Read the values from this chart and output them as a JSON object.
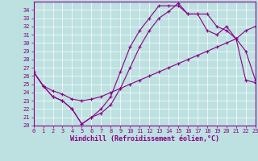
{
  "xlabel": "Windchill (Refroidissement éolien,°C)",
  "xlim": [
    0,
    23
  ],
  "ylim": [
    20,
    35
  ],
  "yticks": [
    20,
    21,
    22,
    23,
    24,
    25,
    26,
    27,
    28,
    29,
    30,
    31,
    32,
    33,
    34
  ],
  "xticks": [
    0,
    1,
    2,
    3,
    4,
    5,
    6,
    7,
    8,
    9,
    10,
    11,
    12,
    13,
    14,
    15,
    16,
    17,
    18,
    19,
    20,
    21,
    22,
    23
  ],
  "line_color": "#880088",
  "bg_color": "#bde0e0",
  "line1_x": [
    0,
    1,
    2,
    3,
    4,
    5,
    6,
    7,
    8,
    9,
    10,
    11,
    12,
    13,
    14,
    15,
    16,
    17,
    18,
    19,
    20,
    21,
    22,
    23
  ],
  "line1_y": [
    26.5,
    24.8,
    24.2,
    23.8,
    23.2,
    23.0,
    23.2,
    23.5,
    24.0,
    24.5,
    25.0,
    25.5,
    26.0,
    26.5,
    27.0,
    27.5,
    28.0,
    28.5,
    29.0,
    29.5,
    30.0,
    30.5,
    25.5,
    25.2
  ],
  "line2_x": [
    0,
    1,
    2,
    3,
    4,
    5,
    6,
    7,
    8,
    9,
    10,
    11,
    12,
    13,
    14,
    15,
    16,
    17,
    18,
    19,
    20,
    21,
    22,
    23
  ],
  "line2_y": [
    26.5,
    24.8,
    23.5,
    23.0,
    22.0,
    20.2,
    21.0,
    21.5,
    22.5,
    24.5,
    27.0,
    29.5,
    31.5,
    33.0,
    33.8,
    34.8,
    33.5,
    33.5,
    33.5,
    32.0,
    31.5,
    30.5,
    31.5,
    32.0
  ],
  "line3_x": [
    0,
    1,
    2,
    3,
    4,
    5,
    6,
    7,
    8,
    9,
    10,
    11,
    12,
    13,
    14,
    15,
    16,
    17,
    18,
    19,
    20,
    21,
    22,
    23
  ],
  "line3_y": [
    26.5,
    24.8,
    23.5,
    23.0,
    22.0,
    20.2,
    21.0,
    22.0,
    23.5,
    26.5,
    29.5,
    31.5,
    33.0,
    34.5,
    34.5,
    34.5,
    33.5,
    33.5,
    31.5,
    31.0,
    32.0,
    30.5,
    29.0,
    25.5
  ],
  "marker": "+",
  "markersize": 3,
  "linewidth": 0.8,
  "fontsize_tick": 5.0,
  "fontsize_xlabel": 6.0
}
